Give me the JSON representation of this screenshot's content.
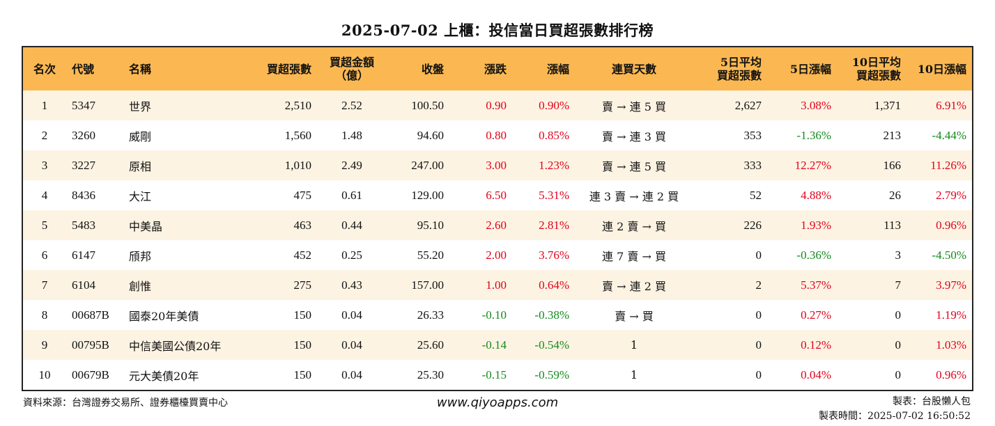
{
  "title": "2025-07-02 上櫃：投信當日買超張數排行榜",
  "columns": {
    "rank": "名次",
    "code": "代號",
    "name": "名稱",
    "net_buy_lots": "買超張數",
    "net_buy_amount_1": "買超金額",
    "net_buy_amount_2": "（億）",
    "close": "收盤",
    "change": "漲跌",
    "change_pct": "漲幅",
    "streak": "連買天數",
    "avg5_1": "5日平均",
    "avg5_2": "買超張數",
    "pct5": "5日漲幅",
    "avg10_1": "10日平均",
    "avg10_2": "買超張數",
    "pct10": "10日漲幅"
  },
  "rows": [
    {
      "rank": "1",
      "code": "5347",
      "name": "世界",
      "lots": "2,510",
      "amount": "2.52",
      "close": "100.50",
      "change": "0.90",
      "change_pct": "0.90%",
      "streak": "賣 → 連 5 買",
      "avg5": "2,627",
      "pct5": "3.08%",
      "avg10": "1,371",
      "pct10": "6.91%"
    },
    {
      "rank": "2",
      "code": "3260",
      "name": "威剛",
      "lots": "1,560",
      "amount": "1.48",
      "close": "94.60",
      "change": "0.80",
      "change_pct": "0.85%",
      "streak": "賣 → 連 3 買",
      "avg5": "353",
      "pct5": "-1.36%",
      "avg10": "213",
      "pct10": "-4.44%"
    },
    {
      "rank": "3",
      "code": "3227",
      "name": "原相",
      "lots": "1,010",
      "amount": "2.49",
      "close": "247.00",
      "change": "3.00",
      "change_pct": "1.23%",
      "streak": "賣 → 連 5 買",
      "avg5": "333",
      "pct5": "12.27%",
      "avg10": "166",
      "pct10": "11.26%"
    },
    {
      "rank": "4",
      "code": "8436",
      "name": "大江",
      "lots": "475",
      "amount": "0.61",
      "close": "129.00",
      "change": "6.50",
      "change_pct": "5.31%",
      "streak": "連 3 賣 → 連 2 買",
      "avg5": "52",
      "pct5": "4.88%",
      "avg10": "26",
      "pct10": "2.79%"
    },
    {
      "rank": "5",
      "code": "5483",
      "name": "中美晶",
      "lots": "463",
      "amount": "0.44",
      "close": "95.10",
      "change": "2.60",
      "change_pct": "2.81%",
      "streak": "連 2 賣 → 買",
      "avg5": "226",
      "pct5": "1.93%",
      "avg10": "113",
      "pct10": "0.96%"
    },
    {
      "rank": "6",
      "code": "6147",
      "name": "頎邦",
      "lots": "452",
      "amount": "0.25",
      "close": "55.20",
      "change": "2.00",
      "change_pct": "3.76%",
      "streak": "連 7 賣 → 買",
      "avg5": "0",
      "pct5": "-0.36%",
      "avg10": "3",
      "pct10": "-4.50%"
    },
    {
      "rank": "7",
      "code": "6104",
      "name": "創惟",
      "lots": "275",
      "amount": "0.43",
      "close": "157.00",
      "change": "1.00",
      "change_pct": "0.64%",
      "streak": "賣 → 連 2 買",
      "avg5": "2",
      "pct5": "5.37%",
      "avg10": "7",
      "pct10": "3.97%"
    },
    {
      "rank": "8",
      "code": "00687B",
      "name": "國泰20年美債",
      "lots": "150",
      "amount": "0.04",
      "close": "26.33",
      "change": "-0.10",
      "change_pct": "-0.38%",
      "streak": "賣 → 買",
      "avg5": "0",
      "pct5": "0.27%",
      "avg10": "0",
      "pct10": "1.19%"
    },
    {
      "rank": "9",
      "code": "00795B",
      "name": "中信美國公債20年",
      "lots": "150",
      "amount": "0.04",
      "close": "25.60",
      "change": "-0.14",
      "change_pct": "-0.54%",
      "streak": "1",
      "avg5": "0",
      "pct5": "0.12%",
      "avg10": "0",
      "pct10": "1.03%"
    },
    {
      "rank": "10",
      "code": "00679B",
      "name": "元大美債20年",
      "lots": "150",
      "amount": "0.04",
      "close": "25.30",
      "change": "-0.15",
      "change_pct": "-0.59%",
      "streak": "1",
      "avg5": "0",
      "pct5": "0.04%",
      "avg10": "0",
      "pct10": "0.96%"
    }
  ],
  "colors": {
    "header_bg": "#fbb852",
    "stripe_bg": "#fdf3e3",
    "up": "#e2001a",
    "down": "#138a1e"
  },
  "footer": {
    "source": "資料來源：台灣證券交易所、證券櫃檯買賣中心",
    "site": "www.qiyoapps.com",
    "maker": "製表：台股懶人包",
    "made_time": "製表時間：2025-07-02 16:50:52"
  }
}
